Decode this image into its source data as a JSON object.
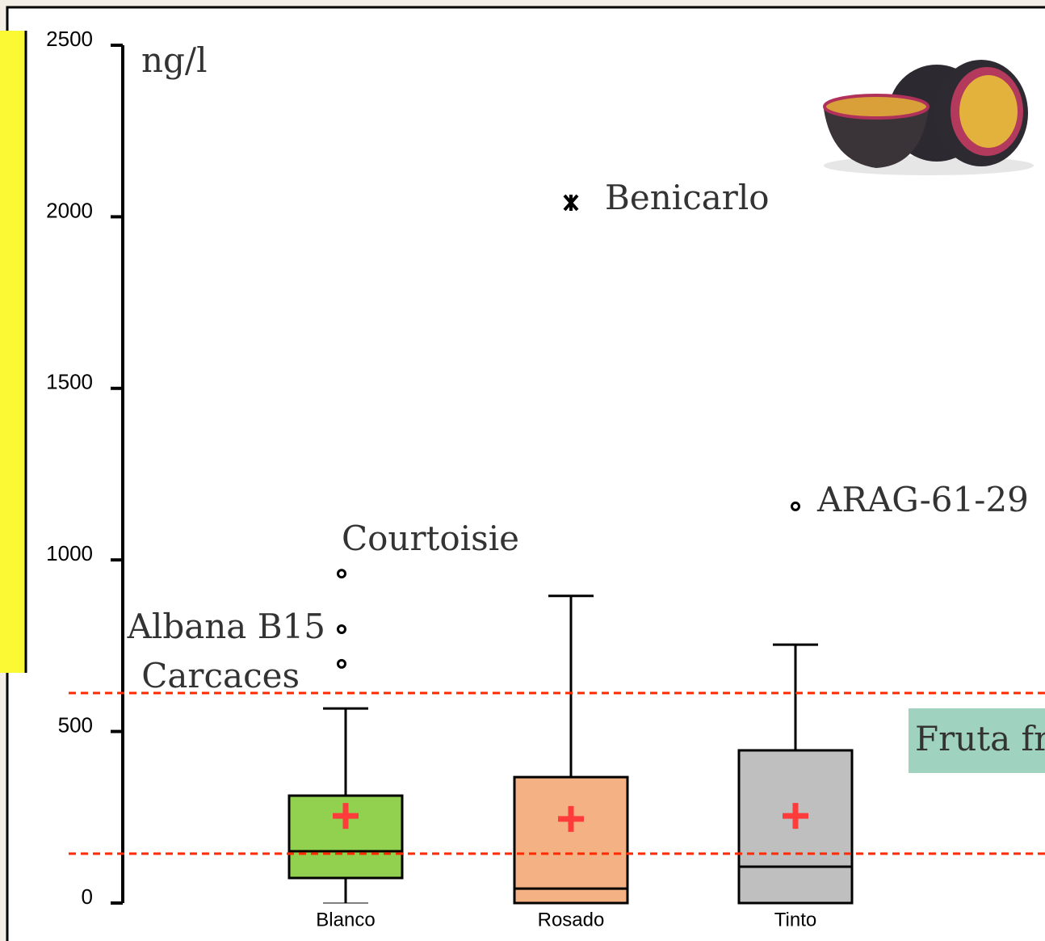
{
  "chart_data": {
    "type": "box",
    "y_label": "ng/l",
    "ylim": [
      0,
      2500
    ],
    "yticks": [
      0,
      500,
      1000,
      1500,
      2000,
      2500
    ],
    "series": [
      {
        "name": "Blanco",
        "color": "#92d050",
        "whislo": 0,
        "q1": 73,
        "med": 151,
        "q3": 313,
        "whishi": 567,
        "mean": 254,
        "outliers": [
          {
            "value": 960,
            "label": "Courtoisie",
            "marker": "circle"
          },
          {
            "value": 798,
            "label": "Albana B15",
            "marker": "circle"
          },
          {
            "value": 697,
            "label": "Carcaces",
            "marker": "circle"
          }
        ]
      },
      {
        "name": "Rosado",
        "color": "#f4b183",
        "whislo": 0,
        "q1": 0,
        "med": 42,
        "q3": 367,
        "whishi": 895,
        "mean": 245,
        "outliers": [
          {
            "value": 2041,
            "label": "Benicarlo",
            "marker": "star"
          }
        ]
      },
      {
        "name": "Tinto",
        "color": "#bfbfbf",
        "whislo": 0,
        "q1": 0,
        "med": 106,
        "q3": 445,
        "whishi": 753,
        "mean": 254,
        "outliers": [
          {
            "value": 1156,
            "label": "ARAG-61-29",
            "marker": "circle"
          }
        ]
      }
    ],
    "mean_color": "#ff3b3b",
    "reference_lines": {
      "values": [
        612,
        144
      ],
      "color": "#ff2a00"
    },
    "annotation": "Fruta fresca"
  }
}
